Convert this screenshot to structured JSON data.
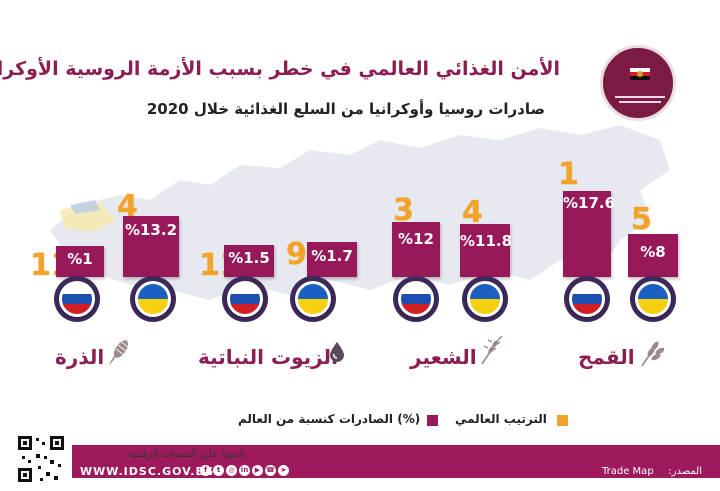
{
  "header": {
    "title": "الأمن الغذائي العالمي في خطر بسبب الأزمة الروسية الأوكرانية",
    "subtitle": "صادرات روسيا وأوكرانيا من السلع الغذائية خلال 2020"
  },
  "commodities": [
    {
      "name": "القمح",
      "icon": "wheat-icon",
      "russia": {
        "share": "%17.6",
        "rank": "1"
      },
      "ukraine": {
        "share": "%8",
        "rank": "5"
      }
    },
    {
      "name": "الشعير",
      "icon": "barley-icon",
      "russia": {
        "share": "%12",
        "rank": "3"
      },
      "ukraine": {
        "share": "%11.8",
        "rank": "4"
      }
    },
    {
      "name": "الزيوت النباتية",
      "icon": "oil-drop-icon",
      "russia": {
        "share": "%1.5",
        "rank": "11"
      },
      "ukraine": {
        "share": "%1.7",
        "rank": "9"
      }
    },
    {
      "name": "الذرة",
      "icon": "corn-icon",
      "russia": {
        "share": "%1",
        "rank": "11"
      },
      "ukraine": {
        "share": "%13.2",
        "rank": "4"
      }
    }
  ],
  "legend": {
    "rank_label": "الترتيب العالمي",
    "share_label": "(%) الصادرات كنسبة من العالم"
  },
  "footer": {
    "follow_text": "تابعونا على المنصات الرقمية",
    "website": "WWW.IDSC.GOV.EG",
    "source_label": "المصدر:",
    "source_value": "Trade Map"
  },
  "colors": {
    "accent": "#98195a",
    "rank": "#f2a32a",
    "map": "#dfe5ec"
  }
}
